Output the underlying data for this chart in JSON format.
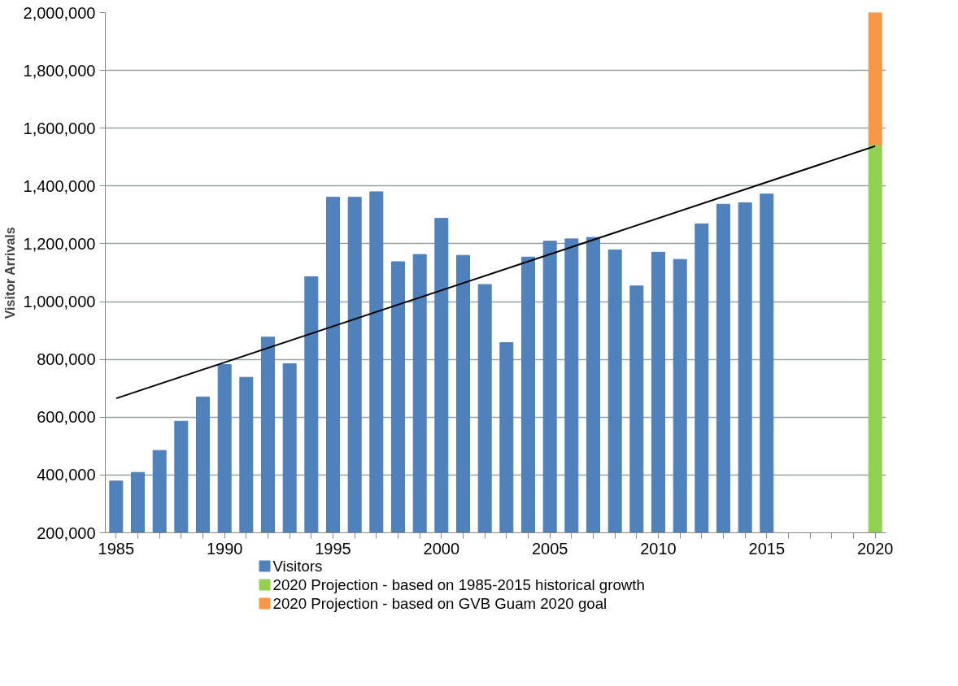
{
  "chart_data": {
    "type": "bar",
    "stacked": true,
    "ylabel": "Visitor Arrivals",
    "xlim": [
      1984.5,
      2020.5
    ],
    "ylim": [
      200000,
      2000000
    ],
    "xticks": [
      {
        "value": 1985,
        "label": "1985"
      },
      {
        "value": 1986,
        "label": null
      },
      {
        "value": 1987,
        "label": null
      },
      {
        "value": 1988,
        "label": null
      },
      {
        "value": 1989,
        "label": null
      },
      {
        "value": 1990,
        "label": "1990"
      },
      {
        "value": 1991,
        "label": null
      },
      {
        "value": 1992,
        "label": null
      },
      {
        "value": 1993,
        "label": null
      },
      {
        "value": 1994,
        "label": null
      },
      {
        "value": 1995,
        "label": "1995"
      },
      {
        "value": 1996,
        "label": null
      },
      {
        "value": 1997,
        "label": null
      },
      {
        "value": 1998,
        "label": null
      },
      {
        "value": 1999,
        "label": null
      },
      {
        "value": 2000,
        "label": "2000"
      },
      {
        "value": 2001,
        "label": null
      },
      {
        "value": 2002,
        "label": null
      },
      {
        "value": 2003,
        "label": null
      },
      {
        "value": 2004,
        "label": null
      },
      {
        "value": 2005,
        "label": "2005"
      },
      {
        "value": 2006,
        "label": null
      },
      {
        "value": 2007,
        "label": null
      },
      {
        "value": 2008,
        "label": null
      },
      {
        "value": 2009,
        "label": null
      },
      {
        "value": 2010,
        "label": "2010"
      },
      {
        "value": 2011,
        "label": null
      },
      {
        "value": 2012,
        "label": null
      },
      {
        "value": 2013,
        "label": null
      },
      {
        "value": 2014,
        "label": null
      },
      {
        "value": 2015,
        "label": "2015"
      },
      {
        "value": 2016,
        "label": null
      },
      {
        "value": 2017,
        "label": null
      },
      {
        "value": 2018,
        "label": null
      },
      {
        "value": 2019,
        "label": null
      },
      {
        "value": 2020,
        "label": "2020"
      }
    ],
    "yticks": [
      {
        "value": 200000,
        "label": "200,000"
      },
      {
        "value": 400000,
        "label": "400,000"
      },
      {
        "value": 600000,
        "label": "600,000"
      },
      {
        "value": 800000,
        "label": "800,000"
      },
      {
        "value": 1000000,
        "label": "1,000,000"
      },
      {
        "value": 1200000,
        "label": "1,200,000"
      },
      {
        "value": 1400000,
        "label": "1,400,000"
      },
      {
        "value": 1600000,
        "label": "1,600,000"
      },
      {
        "value": 1800000,
        "label": "1,800,000"
      },
      {
        "value": 2000000,
        "label": "2,000,000"
      }
    ],
    "grid": "y",
    "legend": "bottom",
    "x": [
      1985,
      1986,
      1987,
      1988,
      1989,
      1990,
      1991,
      1992,
      1993,
      1994,
      1995,
      1996,
      1997,
      1998,
      1999,
      2000,
      2001,
      2002,
      2003,
      2004,
      2005,
      2006,
      2007,
      2008,
      2009,
      2010,
      2011,
      2012,
      2013,
      2014,
      2015,
      2016,
      2017,
      2018,
      2019,
      2020
    ],
    "series": [
      {
        "name": "Visitors",
        "color": "#4f81bd",
        "values": [
          379000,
          409000,
          485000,
          586000,
          670000,
          782000,
          738000,
          877000,
          785000,
          1086000,
          1361000,
          1361000,
          1380000,
          1138000,
          1163000,
          1288000,
          1160000,
          1059000,
          858000,
          1154000,
          1209000,
          1217000,
          1222000,
          1179000,
          1054000,
          1171000,
          1146000,
          1269000,
          1337000,
          1342000,
          1372000,
          null,
          null,
          null,
          null,
          null
        ]
      },
      {
        "name": "2020 Projection - based on 1985-2015 historical growth",
        "color": "#92d050",
        "values": [
          null,
          null,
          null,
          null,
          null,
          null,
          null,
          null,
          null,
          null,
          null,
          null,
          null,
          null,
          null,
          null,
          null,
          null,
          null,
          null,
          null,
          null,
          null,
          null,
          null,
          null,
          null,
          null,
          null,
          null,
          null,
          null,
          null,
          null,
          null,
          1545000
        ]
      },
      {
        "name": "2020 Projection - based on GVB Guam 2020 goal",
        "color": "#f79646",
        "values": [
          null,
          null,
          null,
          null,
          null,
          null,
          null,
          null,
          null,
          null,
          null,
          null,
          null,
          null,
          null,
          null,
          null,
          null,
          null,
          null,
          null,
          null,
          null,
          null,
          null,
          null,
          null,
          null,
          null,
          null,
          null,
          null,
          null,
          null,
          null,
          455000
        ]
      },
      {
        "type": "line",
        "color": "#000000",
        "x": [
          1985,
          2020
        ],
        "values": [
          665000,
          1538000
        ]
      }
    ]
  }
}
